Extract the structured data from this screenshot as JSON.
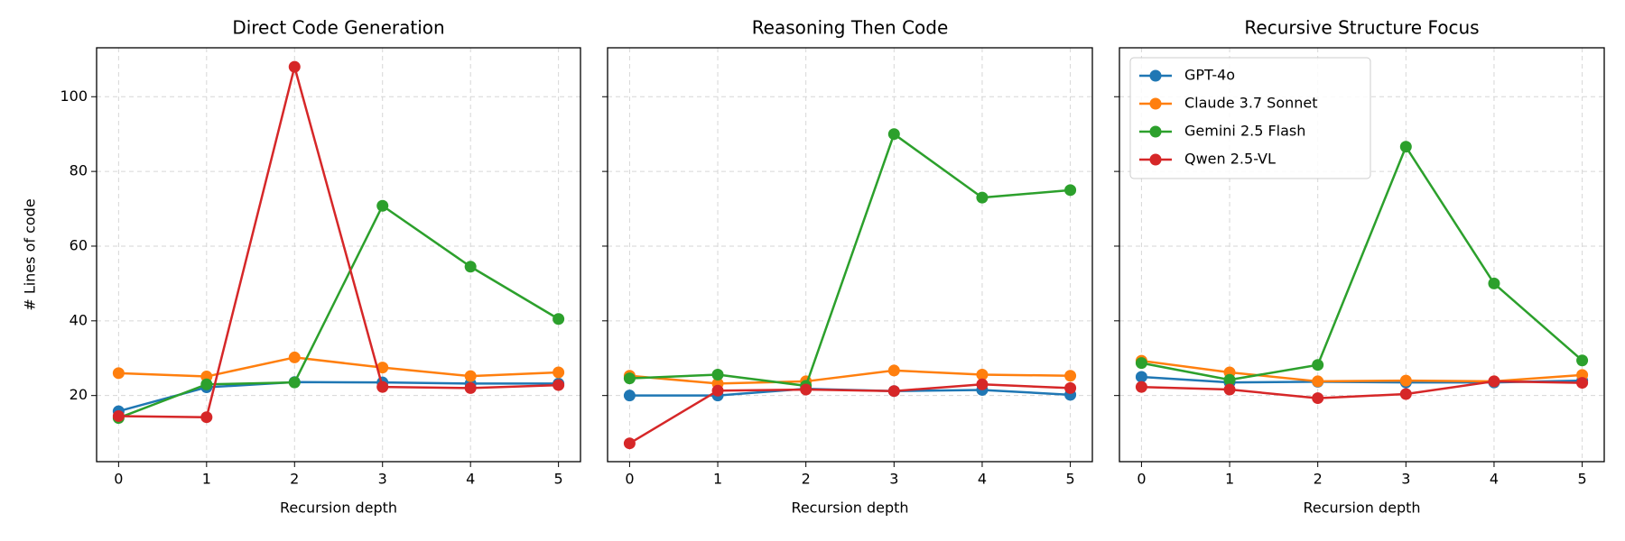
{
  "chart_data": [
    {
      "type": "line",
      "title": "Direct Code Generation",
      "xlabel": "Recursion depth",
      "ylabel": "# Lines of code",
      "x": [
        0,
        1,
        2,
        3,
        4,
        5
      ],
      "xticks": [
        0,
        1,
        2,
        3,
        4,
        5
      ],
      "xlim": [
        -0.25,
        5.25
      ],
      "ylim": [
        2.3,
        113.1
      ],
      "yticks": [
        20,
        40,
        60,
        80,
        100
      ],
      "grid": true,
      "series": [
        {
          "color": "#1f77b4",
          "values": [
            15.8,
            22.2,
            23.6,
            23.5,
            23.2,
            23.2
          ]
        },
        {
          "color": "#ff7f0e",
          "values": [
            26.0,
            25.1,
            30.2,
            27.5,
            25.2,
            26.2
          ]
        },
        {
          "color": "#2ca02c",
          "values": [
            14.0,
            23.0,
            23.5,
            70.8,
            54.5,
            40.5
          ]
        },
        {
          "color": "#d62728",
          "values": [
            14.5,
            14.2,
            108.0,
            22.3,
            22.0,
            22.8
          ]
        }
      ]
    },
    {
      "type": "line",
      "title": "Reasoning Then Code",
      "xlabel": "Recursion depth",
      "x": [
        0,
        1,
        2,
        3,
        4,
        5
      ],
      "xticks": [
        0,
        1,
        2,
        3,
        4,
        5
      ],
      "xlim": [
        -0.25,
        5.25
      ],
      "ylim": [
        2.3,
        113.1
      ],
      "sharey": true,
      "grid": true,
      "series": [
        {
          "color": "#1f77b4",
          "values": [
            20.0,
            20.0,
            21.8,
            21.2,
            21.5,
            20.2
          ]
        },
        {
          "color": "#ff7f0e",
          "values": [
            25.3,
            23.2,
            23.8,
            26.7,
            25.6,
            25.3
          ]
        },
        {
          "color": "#2ca02c",
          "values": [
            24.6,
            25.6,
            22.6,
            90.0,
            73.0,
            75.0
          ]
        },
        {
          "color": "#d62728",
          "values": [
            7.2,
            21.3,
            21.6,
            21.2,
            23.0,
            22.0
          ]
        }
      ]
    },
    {
      "type": "line",
      "title": "Recursive Structure Focus",
      "xlabel": "Recursion depth",
      "x": [
        0,
        1,
        2,
        3,
        4,
        5
      ],
      "xticks": [
        0,
        1,
        2,
        3,
        4,
        5
      ],
      "xlim": [
        -0.25,
        5.25
      ],
      "ylim": [
        2.3,
        113.1
      ],
      "sharey": true,
      "grid": true,
      "legend": "upper left",
      "series": [
        {
          "name": "GPT-4o",
          "color": "#1f77b4",
          "values": [
            25.0,
            23.5,
            23.7,
            23.5,
            23.5,
            24.0
          ]
        },
        {
          "name": "Claude 3.7 Sonnet",
          "color": "#ff7f0e",
          "values": [
            29.3,
            26.2,
            23.8,
            24.0,
            23.8,
            25.5
          ]
        },
        {
          "name": "Gemini 2.5 Flash",
          "color": "#2ca02c",
          "values": [
            28.7,
            24.2,
            28.2,
            86.6,
            50.0,
            29.4
          ]
        },
        {
          "name": "Qwen 2.5-VL",
          "color": "#d62728",
          "values": [
            22.3,
            21.6,
            19.3,
            20.4,
            23.8,
            23.4
          ]
        }
      ]
    }
  ]
}
